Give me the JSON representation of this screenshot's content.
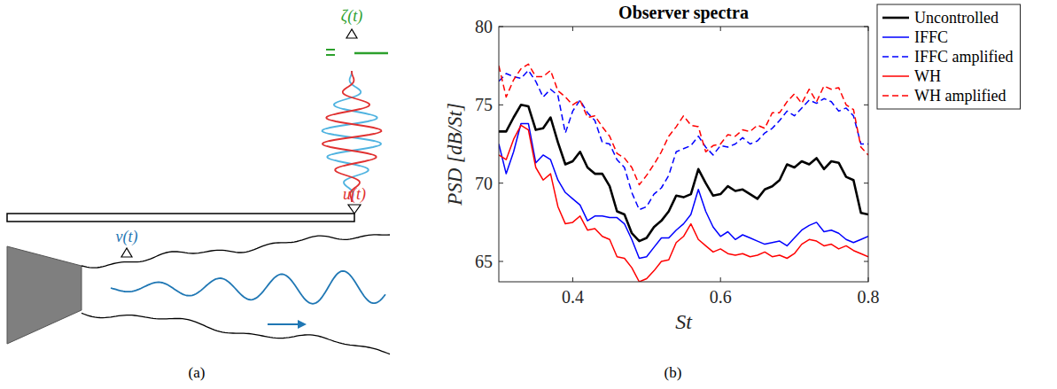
{
  "chart_data": {
    "type": "line",
    "title": "Observer spectra",
    "x_label": "St",
    "y_label": "PSD [dB/St]",
    "x": [
      0.3,
      0.31,
      0.32,
      0.33,
      0.34,
      0.35,
      0.36,
      0.37,
      0.38,
      0.39,
      0.4,
      0.41,
      0.42,
      0.43,
      0.44,
      0.45,
      0.46,
      0.47,
      0.48,
      0.49,
      0.5,
      0.51,
      0.52,
      0.53,
      0.54,
      0.55,
      0.56,
      0.57,
      0.58,
      0.59,
      0.6,
      0.61,
      0.62,
      0.63,
      0.64,
      0.65,
      0.66,
      0.67,
      0.68,
      0.69,
      0.7,
      0.71,
      0.72,
      0.73,
      0.74,
      0.75,
      0.76,
      0.77,
      0.78,
      0.79,
      0.8
    ],
    "xlim": [
      0.3,
      0.8
    ],
    "xticks": [
      0.4,
      0.6,
      0.8
    ],
    "ylim": [
      63.7,
      80
    ],
    "yticks": [
      65,
      70,
      75,
      80
    ],
    "legend": "right",
    "series": [
      {
        "name": "Uncontrolled",
        "color": "#000000",
        "line_style": "solid",
        "values": [
          73.3,
          73.3,
          74.2,
          75.0,
          74.9,
          73.4,
          73.5,
          74.2,
          72.6,
          71.2,
          71.4,
          72.0,
          71.0,
          70.6,
          70.6,
          69.8,
          68.2,
          68.0,
          66.8,
          66.3,
          66.5,
          67.2,
          67.6,
          68.2,
          69.2,
          69.1,
          69.3,
          70.9,
          70.0,
          69.2,
          69.3,
          69.8,
          69.5,
          69.6,
          69.3,
          69.0,
          69.6,
          69.8,
          70.2,
          71.2,
          71.0,
          71.4,
          71.2,
          71.6,
          70.9,
          71.4,
          71.3,
          70.4,
          70.2,
          68.1,
          68.0
        ]
      },
      {
        "name": "IFFC",
        "color": "#0000ff",
        "line_style": "solid",
        "values": [
          72.5,
          70.6,
          72.0,
          73.8,
          73.8,
          71.3,
          71.8,
          71.5,
          70.2,
          69.4,
          69.0,
          68.6,
          67.6,
          67.9,
          67.9,
          67.8,
          67.8,
          67.4,
          66.4,
          65.2,
          65.3,
          65.9,
          66.5,
          66.5,
          67.0,
          67.4,
          68.0,
          69.6,
          68.2,
          67.2,
          66.6,
          66.9,
          66.4,
          66.7,
          66.5,
          66.3,
          66.1,
          66.2,
          66.3,
          66.0,
          66.5,
          67.0,
          67.3,
          67.5,
          66.9,
          67.0,
          66.8,
          66.4,
          66.2,
          66.4,
          66.6
        ]
      },
      {
        "name": "IFFC amplified",
        "color": "#0000ff",
        "line_style": "dashed",
        "values": [
          76.5,
          77.0,
          76.8,
          76.7,
          77.2,
          76.5,
          75.5,
          76.0,
          75.6,
          73.2,
          74.6,
          75.3,
          74.5,
          74.0,
          72.6,
          72.5,
          71.5,
          71.0,
          69.4,
          68.3,
          68.5,
          69.3,
          69.7,
          70.5,
          72.0,
          72.2,
          72.4,
          73.0,
          72.3,
          71.8,
          72.4,
          72.3,
          72.5,
          72.9,
          72.5,
          72.7,
          73.2,
          73.5,
          74.0,
          74.6,
          74.3,
          74.8,
          75.3,
          75.1,
          75.4,
          75.2,
          74.6,
          74.8,
          74.3,
          72.5,
          72.5
        ]
      },
      {
        "name": "WH",
        "color": "#ff0000",
        "line_style": "solid",
        "values": [
          71.8,
          71.5,
          72.8,
          73.7,
          73.4,
          71.0,
          70.2,
          70.6,
          68.5,
          67.4,
          67.5,
          67.9,
          67.0,
          67.1,
          66.6,
          66.4,
          65.3,
          65.2,
          64.6,
          63.7,
          63.9,
          64.4,
          65.0,
          65.1,
          66.2,
          66.6,
          67.4,
          66.4,
          66.0,
          65.6,
          65.8,
          65.5,
          65.4,
          65.5,
          65.3,
          65.4,
          65.6,
          65.3,
          65.4,
          65.2,
          65.5,
          66.1,
          66.4,
          66.3,
          66.0,
          66.1,
          65.8,
          66.0,
          65.7,
          65.5,
          65.3
        ]
      },
      {
        "name": "WH amplified",
        "color": "#ff0000",
        "line_style": "dashed",
        "values": [
          77.5,
          75.5,
          76.6,
          77.3,
          77.6,
          76.8,
          76.8,
          77.2,
          75.9,
          75.5,
          75.0,
          75.3,
          74.2,
          74.3,
          73.6,
          73.0,
          71.9,
          71.6,
          71.0,
          69.9,
          70.5,
          71.2,
          72.0,
          73.0,
          73.6,
          74.3,
          73.7,
          73.6,
          72.0,
          72.4,
          72.5,
          73.1,
          73.0,
          73.4,
          73.3,
          73.7,
          73.5,
          74.5,
          74.5,
          75.2,
          75.7,
          75.1,
          76.0,
          75.2,
          76.2,
          76.0,
          76.1,
          75.0,
          74.7,
          72.3,
          71.8
        ]
      }
    ]
  },
  "diagram": {
    "labels": [
      "ζ(t)",
      "u(t)",
      "v(t)"
    ]
  },
  "panels": [
    "(a)",
    "(b)"
  ]
}
